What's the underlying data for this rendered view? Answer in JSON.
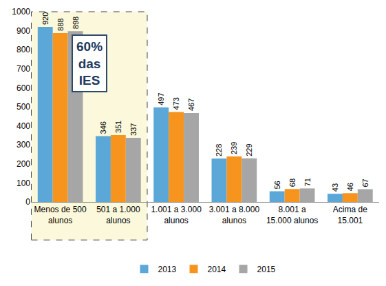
{
  "chart_data": {
    "type": "bar",
    "categories": [
      "Menos de 500 alunos",
      "501 a 1.000 alunos",
      "1.001 a 3.000 alunos",
      "3.001 a 8.000 alunos",
      "8.001 a 15.000 alunos",
      "Acima de 15.001"
    ],
    "series": [
      {
        "name": "2013",
        "color": "#5BA8D8",
        "values": [
          920,
          346,
          497,
          228,
          56,
          43
        ]
      },
      {
        "name": "2014",
        "color": "#F7941D",
        "values": [
          888,
          351,
          473,
          239,
          68,
          46
        ]
      },
      {
        "name": "2015",
        "color": "#A6A6A6",
        "values": [
          898,
          337,
          467,
          229,
          71,
          67
        ]
      }
    ],
    "ylim": [
      0,
      1000
    ],
    "yticks": [
      0,
      100,
      200,
      300,
      400,
      500,
      600,
      700,
      800,
      900,
      1000
    ],
    "grid": false,
    "legend": "bottom",
    "data_labels": true,
    "annotations": [
      {
        "text": "60% das IES"
      }
    ]
  }
}
